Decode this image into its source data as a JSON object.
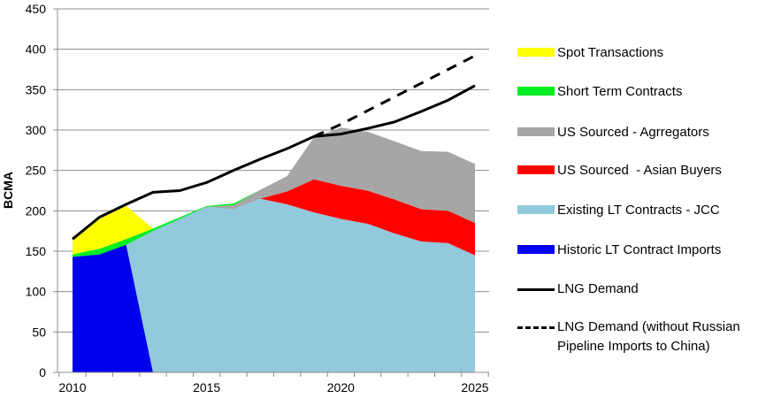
{
  "chart_data": {
    "type": "area",
    "title": "",
    "xlabel": "",
    "ylabel": "BCMA",
    "ylim": [
      0,
      450
    ],
    "yticks": [
      "0",
      "50",
      "100",
      "150",
      "200",
      "250",
      "300",
      "350",
      "400",
      "450"
    ],
    "xlim": [
      2010,
      2025
    ],
    "xticks": [
      "2010",
      "2015",
      "2020",
      "2025"
    ],
    "grid": "horizontal",
    "legend_position": "right",
    "x": [
      2010,
      2011,
      2012,
      2013,
      2014,
      2015,
      2016,
      2017,
      2018,
      2019,
      2020,
      2021,
      2022,
      2023,
      2024,
      2025
    ],
    "stacked_series": [
      {
        "name": "Historic LT Contract Imports",
        "color": "#0000ee",
        "values": [
          143,
          146,
          158,
          0,
          null,
          null,
          null,
          null,
          null,
          null,
          null,
          null,
          null,
          null,
          null,
          null
        ]
      },
      {
        "name": "Existing LT Contracts - JCC",
        "color": "#92c9dc",
        "values": [
          null,
          null,
          0,
          175,
          190,
          205,
          202,
          215,
          208,
          198,
          190,
          184,
          172,
          162,
          160,
          145
        ]
      },
      {
        "name": "US Sourced  - Asian Buyers",
        "color": "#ff0000",
        "values": [
          null,
          null,
          null,
          null,
          null,
          null,
          null,
          0,
          16,
          41,
          41,
          41,
          42,
          40,
          40,
          40
        ]
      },
      {
        "name": "US Sourced - Agrregators",
        "color": "#a6a6a6",
        "values": [
          null,
          null,
          null,
          null,
          null,
          0,
          5,
          11,
          19,
          52,
          72,
          73,
          72,
          72,
          73,
          73
        ]
      },
      {
        "name": "Short Term Contracts",
        "color": "#00ee22",
        "values": [
          3,
          7,
          7,
          3,
          2,
          1,
          2,
          0,
          null,
          null,
          null,
          null,
          null,
          null,
          null,
          null
        ]
      },
      {
        "name": "Spot Transactions",
        "color": "#ffff00",
        "values": [
          19,
          37,
          41,
          0,
          null,
          null,
          null,
          null,
          null,
          null,
          null,
          null,
          null,
          null,
          null,
          null
        ]
      }
    ],
    "line_series": [
      {
        "name": "LNG Demand",
        "style": "solid",
        "values": [
          165,
          192,
          208,
          223,
          225,
          235,
          250,
          264,
          277,
          292,
          295,
          302,
          310,
          323,
          337,
          355
        ]
      },
      {
        "name": "LNG Demand (without Russian Pipeline Imports to China)",
        "style": "dashed",
        "values": [
          null,
          null,
          null,
          null,
          null,
          null,
          null,
          null,
          null,
          292,
          307,
          324,
          341,
          358,
          375,
          392
        ]
      }
    ]
  },
  "legend": {
    "items": [
      {
        "label": "Spot Transactions",
        "color": "#ffff00"
      },
      {
        "label": "Short Term Contracts",
        "color": "#00ee22"
      },
      {
        "label": "US Sourced - Agrregators",
        "color": "#a6a6a6"
      },
      {
        "label": "US Sourced  - Asian Buyers",
        "color": "#ff0000"
      },
      {
        "label": "Existing LT Contracts - JCC",
        "color": "#92c9dc"
      },
      {
        "label": "Historic LT Contract Imports",
        "color": "#0000ee"
      },
      {
        "label": "LNG Demand"
      },
      {
        "label_line1": "LNG Demand (without Russian",
        "label_line2": "Pipeline Imports to China)"
      }
    ]
  }
}
